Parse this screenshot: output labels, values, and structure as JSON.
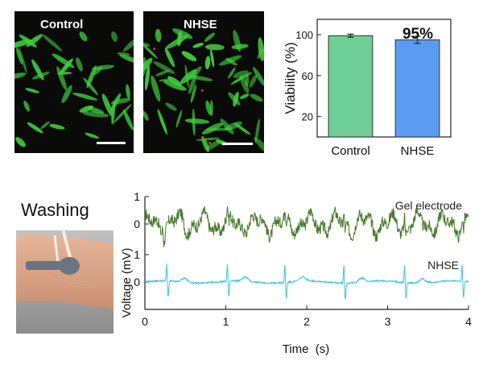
{
  "micrographs": [
    {
      "label": "Control"
    },
    {
      "label": "NHSE"
    }
  ],
  "washing_photo": {
    "label": "Washing"
  },
  "colors": {
    "control_bar": "#6fcf97",
    "nhse_bar": "#5b9cf2",
    "gel_trace": "#4a7a30",
    "nhse_trace": "#3cc3e6",
    "cell_green": "#3fcf3f"
  },
  "chart_data": [
    {
      "type": "bar",
      "categories": [
        "Control",
        "NHSE"
      ],
      "values": [
        99,
        95
      ],
      "errors": [
        1.5,
        3.5
      ],
      "annotation": "95%",
      "ylabel": "Viability (%)",
      "xlabel": "",
      "ylim": [
        0,
        115
      ],
      "yticks": [
        20,
        60,
        100
      ]
    },
    {
      "type": "line",
      "xlabel": "Time  (s)",
      "ylabel": "Voltage (mV)",
      "xlim": [
        0,
        4
      ],
      "xticks": [
        0,
        1,
        2,
        3,
        4
      ],
      "series": [
        {
          "name": "Gel electrode",
          "yticks": [
            1,
            0
          ],
          "ylim": [
            -1,
            1
          ],
          "signal": "noisy ECG",
          "beats_s": [
            0.22,
            1.02,
            1.73,
            2.46,
            3.21,
            3.92
          ]
        },
        {
          "name": "NHSE",
          "yticks": [
            1,
            0
          ],
          "ylim": [
            -1,
            1
          ],
          "signal": "clean ECG",
          "beats_s": [
            0.27,
            1.02,
            1.73,
            2.46,
            3.21,
            3.92
          ]
        }
      ]
    }
  ]
}
